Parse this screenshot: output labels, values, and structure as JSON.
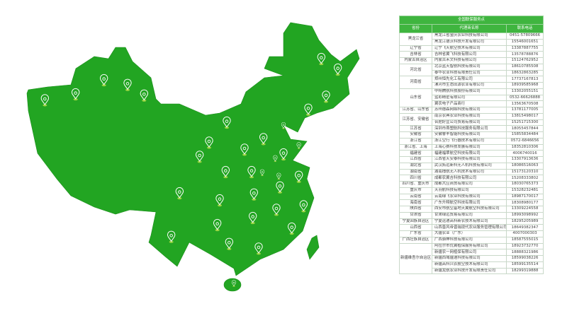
{
  "colors": {
    "map_fill": "#22a522",
    "header_bg": "#3fb53f",
    "pin": "#ffffff"
  },
  "map": {
    "pin_icon": "location-pin-icon"
  },
  "table": {
    "title": "全国联保服务点",
    "headers": [
      "省份",
      "代理商名称",
      "联系电话"
    ],
    "groups": [
      {
        "province": "黑龙江省",
        "rows": [
          [
            "黑龙江省金庆农业科技有限公司",
            "0451-57809666"
          ],
          [
            "黑龙江德沃科技开发有限公司",
            "15546001651"
          ]
        ]
      },
      {
        "province": "辽宁省",
        "rows": [
          [
            "辽宁飞天航空技术有限公司",
            "13387887755"
          ]
        ]
      },
      {
        "province": "吉林省",
        "rows": [
          [
            "吉林省翼飞科技有限公司",
            "13578788876"
          ]
        ]
      },
      {
        "province": "内蒙古自治区",
        "rows": [
          [
            "内蒙古禾文科技有限公司",
            "15124762952"
          ]
        ]
      },
      {
        "province": "河北省",
        "rows": [
          [
            "北京蓝天智航科技有限公司",
            "18610785508"
          ],
          [
            "泰华农业科技有限责任公司",
            "18632863285"
          ]
        ]
      },
      {
        "province": "河南省",
        "rows": [
          [
            "郑州恒先化工有限公司",
            "17737167813"
          ],
          [
            "漯河市生态田源农业有限公司",
            "18939585968"
          ]
        ]
      },
      {
        "province": "山东省",
        "rows": [
          [
            "中翔腾航科技股份有限公司",
            "13302055151"
          ],
          [
            "蓝彩精密有限公司",
            "0532-66626888"
          ],
          [
            "翼农电子产品商行",
            "13563670508"
          ]
        ]
      },
      {
        "province": "江苏省、山东省",
        "rows": [
          [
            "苏州德森网络科技有限公司",
            "13781177005"
          ]
        ]
      },
      {
        "province": "江苏省、安徽省",
        "rows": [
          [
            "南京农典农业科技有限公司",
            "13815498017"
          ],
          [
            "合肥好宜公司贸易有限公司",
            "15251715300"
          ]
        ]
      },
      {
        "province": "江苏省",
        "rows": [
          [
            "深圳市燕塑航科技服务有限公司",
            "18055457844"
          ]
        ]
      },
      {
        "province": "安徽省",
        "rows": [
          [
            "安徽睿丰智能科技有限公司",
            "15855834484"
          ]
        ]
      },
      {
        "province": "浙江省",
        "rows": [
          [
            "浙江空行飞行器技术有限公司",
            "0572-6846656"
          ]
        ]
      },
      {
        "province": "浙江省、上海",
        "rows": [
          [
            "上海心赛科技发展有限公司",
            "18352810306"
          ]
        ]
      },
      {
        "province": "福建省",
        "rows": [
          [
            "福建福翠航空科技有限公司",
            "4006740016"
          ]
        ]
      },
      {
        "province": "江西省",
        "rows": [
          [
            "江西省天安泰科技有限公司",
            "13307913636"
          ]
        ]
      },
      {
        "province": "湖北省",
        "rows": [
          [
            "武汉拓远新科无人机科技有限公司",
            "18086516063"
          ]
        ]
      },
      {
        "province": "湖南省",
        "rows": [
          [
            "湖南搏航无人机技术有限公司",
            "15173120310"
          ]
        ]
      },
      {
        "province": "四川省",
        "rows": [
          [
            "成都农翼吉科技有限公司",
            "15208333802"
          ]
        ]
      },
      {
        "province": "四川省、重庆市",
        "rows": [
          [
            "成都大应商贸有限公司",
            "18030765373"
          ]
        ]
      },
      {
        "province": "重庆市",
        "rows": [
          [
            "天羽航科技有限公司",
            "15328232481"
          ]
        ]
      },
      {
        "province": "云南省",
        "rows": [
          [
            "云南绿飞农业科技有限公司",
            "18987170017"
          ]
        ]
      },
      {
        "province": "海南省",
        "rows": [
          [
            "广东升翔航空科技有限公司",
            "18308980177"
          ]
        ]
      },
      {
        "province": "陕西省",
        "rows": [
          [
            "西安市航空基地天翼航空科技有限公司",
            "13309224558"
          ]
        ]
      },
      {
        "province": "甘肃省",
        "rows": [
          [
            "甘肃绿远贸易有限公司",
            "18993098992"
          ]
        ]
      },
      {
        "province": "宁夏回族自治区",
        "rows": [
          [
            "宁夏运通高科新农技术有限公司",
            "18295205989"
          ]
        ]
      },
      {
        "province": "山西省",
        "rows": [
          [
            "山西晋风帝晋瑞现代农业服务管理有限公司",
            "18649382347"
          ]
        ]
      },
      {
        "province": "广东省",
        "rows": [
          [
            "大疆农业（广东）",
            "4007000303"
          ]
        ]
      },
      {
        "province": "广西壮族自治区",
        "rows": [
          [
            "广西骆神科技有限公司",
            "18587555015"
          ]
        ]
      },
      {
        "province": "新疆维吾尔自治区",
        "rows": [
          [
            "阿拉尔市优翼植保服务有限公司",
            "18923732770"
          ],
          [
            "新疆农一网植保有限公司",
            "18888321986"
          ],
          [
            "新疆西域疆速科技有限公司",
            "18599038226"
          ],
          [
            "新疆高科兴农航空技术有限公司",
            "18599135514"
          ],
          [
            "新疆龙航农业科技开发有限责任公司",
            "18299319888"
          ]
        ]
      }
    ]
  }
}
